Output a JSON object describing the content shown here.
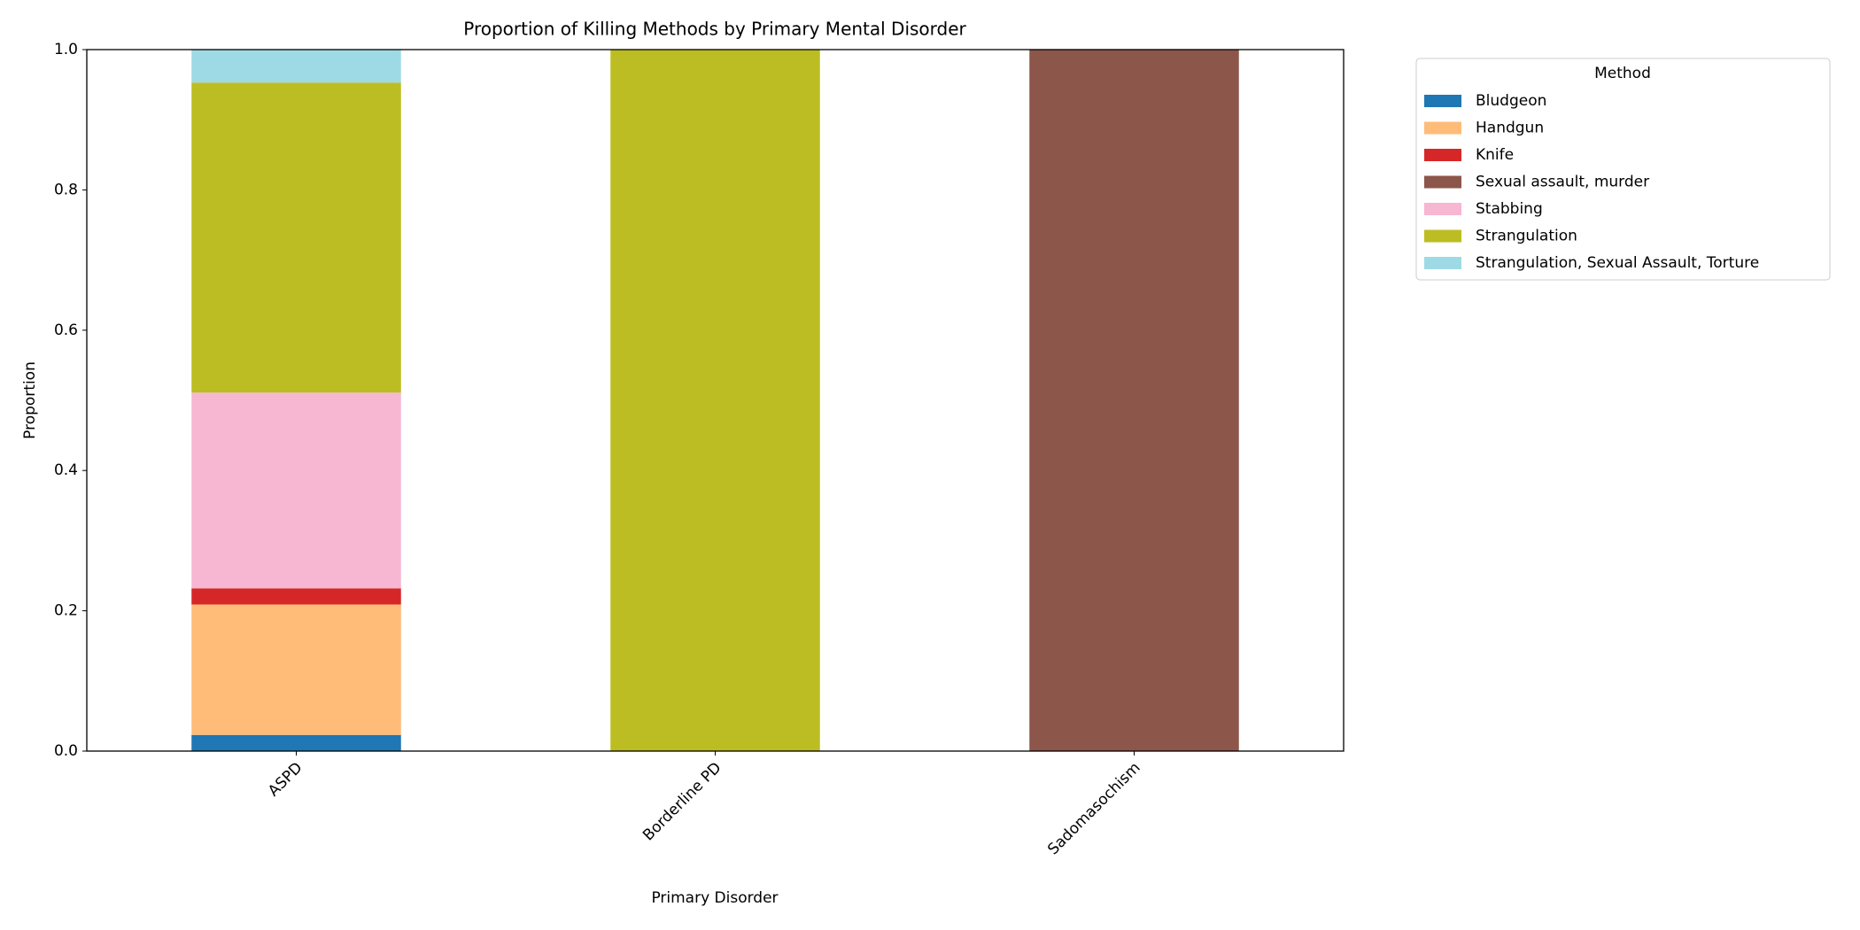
{
  "chart_data": {
    "type": "stacked_bar",
    "title": "Proportion of Killing Methods by Primary Mental Disorder",
    "x_label": "Primary Disorder",
    "y_label": "Proportion",
    "categories": [
      "ASPD",
      "Borderline PD",
      "Sadomasochism"
    ],
    "legend_title": "Method",
    "legend_position": "outside upper right",
    "series": [
      {
        "name": "Bludgeon",
        "color": "#1f77b4",
        "values": [
          0.023,
          0,
          0
        ]
      },
      {
        "name": "Handgun",
        "color": "#ffbb78",
        "values": [
          0.186,
          0,
          0
        ]
      },
      {
        "name": "Knife",
        "color": "#d62728",
        "values": [
          0.023,
          0,
          0
        ]
      },
      {
        "name": "Sexual assault, murder",
        "color": "#8c564b",
        "values": [
          0,
          0,
          1
        ]
      },
      {
        "name": "Stabbing",
        "color": "#f7b6d2",
        "values": [
          0.279,
          0,
          0
        ]
      },
      {
        "name": "Strangulation",
        "color": "#bcbd22",
        "values": [
          0.442,
          1,
          0
        ]
      },
      {
        "name": "Strangulation, Sexual Assault, Torture",
        "color": "#9edae5",
        "values": [
          0.047,
          0,
          0
        ]
      }
    ],
    "ylim": [
      0,
      1
    ],
    "yticks": [
      {
        "value": 0,
        "label": "0.0"
      },
      {
        "value": 0.2,
        "label": "0.2"
      },
      {
        "value": 0.4,
        "label": "0.4"
      },
      {
        "value": 0.6,
        "label": "0.6"
      },
      {
        "value": 0.8,
        "label": "0.8"
      },
      {
        "value": 1,
        "label": "1.0"
      }
    ],
    "grid": false
  }
}
